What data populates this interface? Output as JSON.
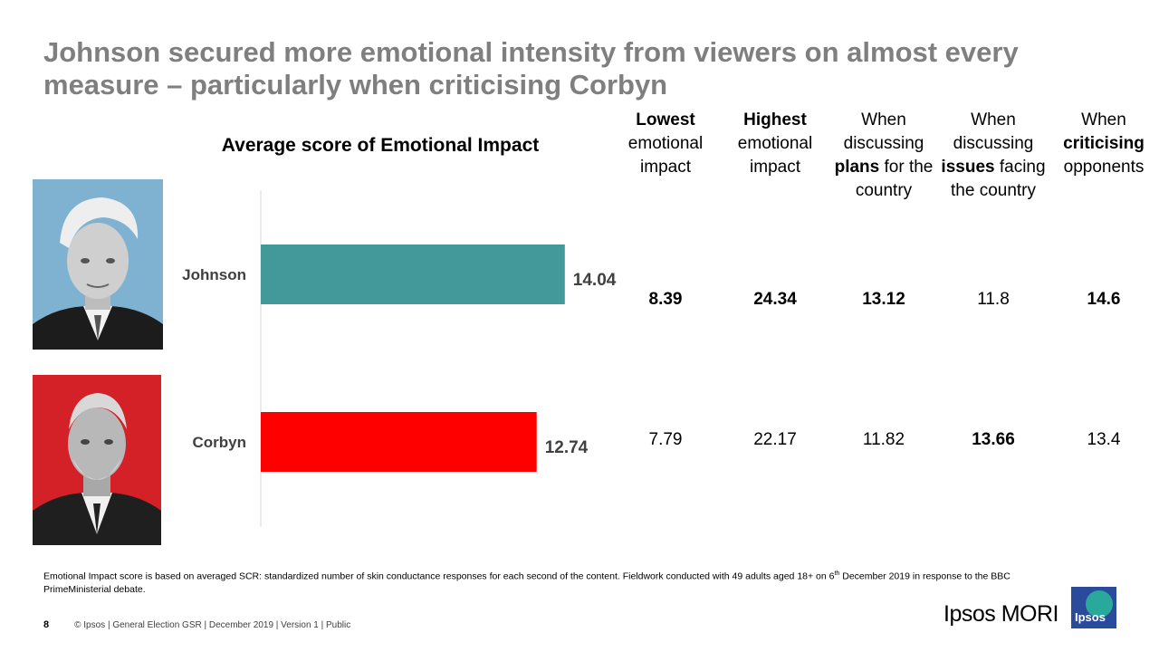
{
  "title": "Johnson secured more emotional intensity from viewers on almost every measure – particularly when criticising Corbyn",
  "chart_data": {
    "type": "bar",
    "orientation": "horizontal",
    "title": "Average score of Emotional Impact",
    "categories": [
      "Johnson",
      "Corbyn"
    ],
    "values": [
      14.04,
      12.74
    ],
    "value_labels": [
      "14.04",
      "12.74"
    ],
    "colors": [
      "#43999a",
      "#ff0000"
    ],
    "xlim": [
      0,
      24
    ],
    "xlabel": "",
    "ylabel": "",
    "grid": false
  },
  "table": {
    "columns": [
      {
        "bold": "Lowest",
        "pre": "",
        "post": " emotional impact"
      },
      {
        "bold": "Highest",
        "pre": "",
        "post": " emotional impact"
      },
      {
        "bold": "plans",
        "pre": "When discussing ",
        "post": " for the country"
      },
      {
        "bold": "issues",
        "pre": "When discussing ",
        "post": " facing the country"
      },
      {
        "bold": "criticising",
        "pre": "When ",
        "post": " opponents"
      }
    ],
    "rows": [
      {
        "name": "Johnson",
        "cells": [
          {
            "value": "8.39",
            "bold": true
          },
          {
            "value": "24.34",
            "bold": true
          },
          {
            "value": "13.12",
            "bold": true
          },
          {
            "value": "11.8",
            "bold": false
          },
          {
            "value": "14.6",
            "bold": true
          }
        ]
      },
      {
        "name": "Corbyn",
        "cells": [
          {
            "value": "7.79",
            "bold": false
          },
          {
            "value": "22.17",
            "bold": false
          },
          {
            "value": "11.82",
            "bold": false
          },
          {
            "value": "13.66",
            "bold": true
          },
          {
            "value": "13.4",
            "bold": false
          }
        ]
      }
    ]
  },
  "portraits": {
    "johnson_bg": "#7fb2d0",
    "corbyn_bg": "#d42027"
  },
  "footnote": {
    "text1": "Emotional Impact score is based on averaged SCR: standardized number of skin conductance responses for each second of the content. Fieldwork conducted with 49 adults aged 18+ on 6",
    "sup": "th",
    "text2": " December 2019 in response to the BBC PrimeMinisterial debate."
  },
  "footer": {
    "page_number": "8",
    "text": "© Ipsos | General Election GSR | December 2019 | Version 1 | Public"
  },
  "brand": {
    "name": "Ipsos MORI",
    "logo_text": "Ipsos"
  }
}
